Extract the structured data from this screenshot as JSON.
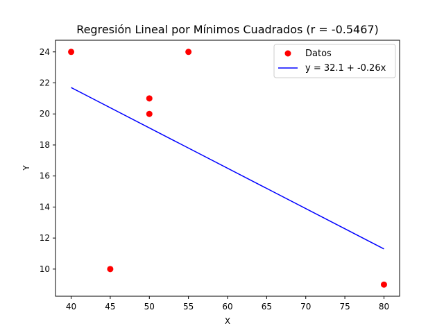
{
  "chart_data": {
    "type": "scatter",
    "title": "Regresión Lineal por Mínimos Cuadrados (r = -0.5467)",
    "xlabel": "X",
    "ylabel": "Y",
    "xlim": [
      38.0,
      82.0
    ],
    "ylim": [
      8.25,
      24.75
    ],
    "xticks": [
      "40",
      "45",
      "50",
      "55",
      "60",
      "65",
      "70",
      "75",
      "80"
    ],
    "yticks": [
      "10",
      "12",
      "14",
      "16",
      "18",
      "20",
      "22",
      "24"
    ],
    "grid": false,
    "legend_position": "top-right",
    "series": [
      {
        "name": "Datos",
        "kind": "scatter",
        "color": "#ff0000",
        "x": [
          40,
          45,
          50,
          50,
          55,
          80
        ],
        "y": [
          24,
          10,
          21,
          20,
          24,
          9
        ]
      },
      {
        "name": "y = 32.1 + -0.26x",
        "kind": "line",
        "color": "#0000ff",
        "intercept": 32.1,
        "slope": -0.26,
        "x": [
          40,
          80
        ],
        "y": [
          21.7,
          11.3
        ]
      }
    ]
  }
}
